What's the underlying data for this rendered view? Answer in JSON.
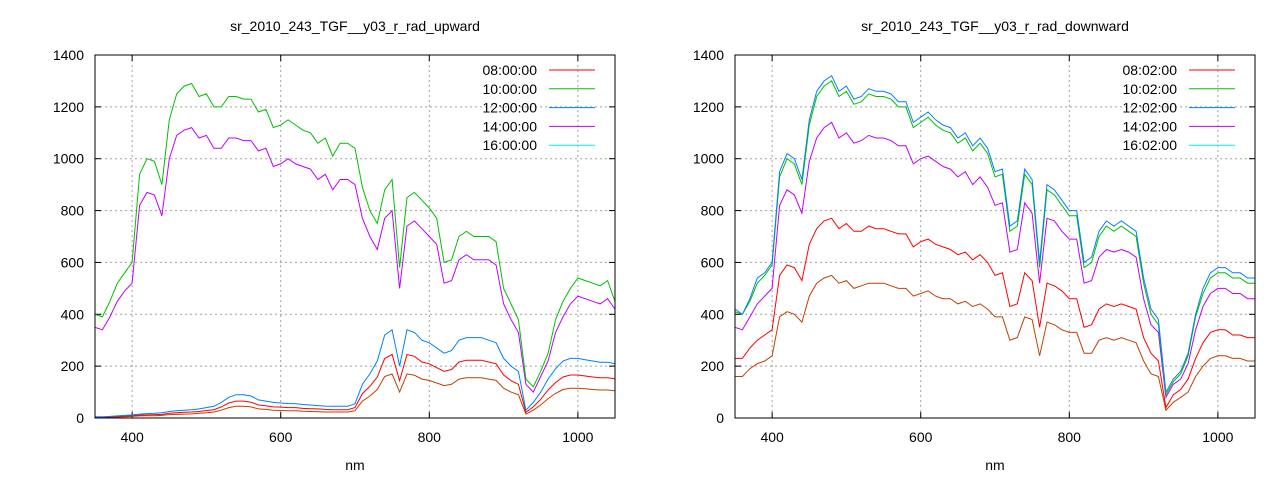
{
  "chart_data": [
    {
      "type": "line",
      "title": "sr_2010_243_TGF__y03_r_rad_upward",
      "xlabel": "nm",
      "ylabel": "",
      "xlim": [
        350,
        1050
      ],
      "ylim": [
        0,
        1400
      ],
      "xticks": [
        400,
        600,
        800,
        1000
      ],
      "yticks": [
        0,
        200,
        400,
        600,
        800,
        1000,
        1200,
        1400
      ],
      "grid": true,
      "legend_position": "top-right",
      "x": [
        350,
        360,
        370,
        380,
        390,
        400,
        410,
        420,
        430,
        440,
        450,
        460,
        470,
        480,
        490,
        500,
        510,
        520,
        530,
        540,
        550,
        560,
        570,
        580,
        590,
        600,
        610,
        620,
        630,
        640,
        650,
        660,
        670,
        680,
        690,
        700,
        710,
        720,
        730,
        740,
        750,
        760,
        770,
        780,
        790,
        800,
        810,
        820,
        830,
        840,
        850,
        860,
        870,
        880,
        890,
        900,
        910,
        920,
        930,
        940,
        950,
        960,
        970,
        980,
        990,
        1000,
        1010,
        1020,
        1030,
        1040,
        1050
      ],
      "series": [
        {
          "name": "08:00:00",
          "legend_color": "#ff0000",
          "line_color": "#ff0000",
          "values": [
            4,
            4,
            4,
            6,
            7,
            9,
            11,
            12,
            13,
            14,
            18,
            20,
            22,
            23,
            25,
            29,
            32,
            43,
            58,
            65,
            65,
            61,
            50,
            47,
            43,
            42,
            40,
            40,
            37,
            36,
            35,
            33,
            32,
            32,
            32,
            40,
            94,
            122,
            158,
            230,
            245,
            144,
            245,
            238,
            216,
            209,
            194,
            180,
            187,
            216,
            223,
            223,
            223,
            216,
            209,
            166,
            144,
            130,
            22,
            43,
            72,
            108,
            137,
            158,
            166,
            166,
            162,
            158,
            155,
            155,
            151
          ]
        },
        {
          "name": "10:00:00",
          "legend_color": "#00c000",
          "line_color": "#00c000",
          "values": [
            400,
            390,
            450,
            520,
            560,
            600,
            940,
            1000,
            990,
            900,
            1150,
            1250,
            1280,
            1290,
            1240,
            1250,
            1200,
            1200,
            1240,
            1240,
            1230,
            1230,
            1180,
            1190,
            1120,
            1130,
            1150,
            1130,
            1110,
            1100,
            1060,
            1080,
            1010,
            1060,
            1060,
            1040,
            890,
            800,
            750,
            880,
            920,
            580,
            850,
            870,
            840,
            810,
            770,
            600,
            610,
            700,
            720,
            700,
            700,
            700,
            680,
            500,
            440,
            380,
            150,
            120,
            180,
            250,
            380,
            450,
            500,
            540,
            530,
            520,
            510,
            530,
            450
          ]
        },
        {
          "name": "12:00:00",
          "legend_color": "#0080ff",
          "line_color": "#0080ff",
          "values": [
            5,
            5,
            6,
            8,
            10,
            12,
            15,
            17,
            18,
            20,
            25,
            28,
            30,
            32,
            35,
            40,
            45,
            60,
            80,
            90,
            90,
            85,
            70,
            65,
            60,
            58,
            56,
            55,
            52,
            50,
            48,
            46,
            45,
            45,
            45,
            55,
            130,
            170,
            220,
            320,
            340,
            200,
            340,
            330,
            300,
            290,
            270,
            250,
            260,
            300,
            310,
            310,
            310,
            300,
            290,
            230,
            200,
            180,
            30,
            60,
            100,
            150,
            190,
            220,
            230,
            230,
            225,
            220,
            215,
            215,
            210
          ]
        },
        {
          "name": "14:00:00",
          "legend_color": "#c000ff",
          "line_color": "#c000ff",
          "values": [
            350,
            340,
            390,
            450,
            490,
            520,
            820,
            870,
            860,
            780,
            1000,
            1090,
            1110,
            1120,
            1080,
            1090,
            1040,
            1040,
            1080,
            1080,
            1070,
            1070,
            1030,
            1040,
            970,
            980,
            1000,
            980,
            970,
            960,
            920,
            940,
            880,
            920,
            920,
            900,
            770,
            700,
            650,
            770,
            800,
            500,
            740,
            760,
            730,
            700,
            670,
            520,
            530,
            610,
            630,
            610,
            610,
            610,
            590,
            440,
            380,
            330,
            130,
            100,
            160,
            220,
            330,
            390,
            440,
            470,
            460,
            450,
            440,
            460,
            420
          ]
        },
        {
          "name": "16:00:00",
          "legend_color": "#00eeee",
          "line_color": "#c04000",
          "values": [
            3,
            3,
            3,
            4,
            5,
            6,
            8,
            9,
            9,
            10,
            13,
            14,
            15,
            16,
            18,
            20,
            23,
            30,
            40,
            45,
            45,
            43,
            35,
            33,
            30,
            29,
            28,
            28,
            26,
            25,
            24,
            23,
            23,
            23,
            23,
            28,
            65,
            85,
            110,
            160,
            170,
            100,
            170,
            165,
            150,
            145,
            135,
            125,
            130,
            150,
            155,
            155,
            155,
            150,
            145,
            115,
            100,
            90,
            15,
            30,
            50,
            75,
            95,
            110,
            115,
            115,
            113,
            110,
            108,
            108,
            105
          ]
        }
      ]
    },
    {
      "type": "line",
      "title": "sr_2010_243_TGF__y03_r_rad_downward",
      "xlabel": "nm",
      "ylabel": "",
      "xlim": [
        350,
        1050
      ],
      "ylim": [
        0,
        1400
      ],
      "xticks": [
        400,
        600,
        800,
        1000
      ],
      "yticks": [
        0,
        200,
        400,
        600,
        800,
        1000,
        1200,
        1400
      ],
      "grid": true,
      "legend_position": "top-right",
      "x": [
        350,
        360,
        370,
        380,
        390,
        400,
        410,
        420,
        430,
        440,
        450,
        460,
        470,
        480,
        490,
        500,
        510,
        520,
        530,
        540,
        550,
        560,
        570,
        580,
        590,
        600,
        610,
        620,
        630,
        640,
        650,
        660,
        670,
        680,
        690,
        700,
        710,
        720,
        730,
        740,
        750,
        760,
        770,
        780,
        790,
        800,
        810,
        820,
        830,
        840,
        850,
        860,
        870,
        880,
        890,
        900,
        910,
        920,
        930,
        940,
        950,
        960,
        970,
        980,
        990,
        1000,
        1010,
        1020,
        1030,
        1040,
        1050
      ],
      "series": [
        {
          "name": "08:02:00",
          "legend_color": "#ff0000",
          "line_color": "#ff0000",
          "values": [
            230,
            230,
            270,
            300,
            320,
            340,
            550,
            590,
            580,
            530,
            670,
            730,
            760,
            770,
            730,
            750,
            720,
            720,
            740,
            730,
            730,
            720,
            710,
            710,
            660,
            680,
            690,
            670,
            660,
            650,
            630,
            640,
            610,
            630,
            600,
            550,
            560,
            430,
            440,
            560,
            530,
            350,
            520,
            510,
            490,
            460,
            460,
            350,
            360,
            420,
            440,
            430,
            440,
            430,
            420,
            310,
            250,
            220,
            40,
            90,
            110,
            150,
            230,
            290,
            330,
            340,
            340,
            320,
            320,
            310,
            310
          ]
        },
        {
          "name": "10:02:00",
          "legend_color": "#00c000",
          "line_color": "#00c000",
          "values": [
            410,
            400,
            450,
            520,
            550,
            590,
            930,
            1000,
            980,
            900,
            1130,
            1240,
            1280,
            1300,
            1240,
            1260,
            1210,
            1220,
            1250,
            1240,
            1240,
            1230,
            1200,
            1200,
            1120,
            1140,
            1160,
            1130,
            1110,
            1100,
            1060,
            1080,
            1030,
            1060,
            1020,
            930,
            940,
            720,
            740,
            940,
            900,
            580,
            880,
            860,
            820,
            780,
            780,
            580,
            600,
            700,
            740,
            720,
            740,
            720,
            700,
            520,
            400,
            360,
            90,
            140,
            170,
            240,
            390,
            480,
            540,
            560,
            560,
            540,
            540,
            520,
            520
          ]
        },
        {
          "name": "12:02:00",
          "legend_color": "#0080ff",
          "line_color": "#0080ff",
          "values": [
            420,
            400,
            460,
            540,
            560,
            600,
            950,
            1020,
            1000,
            920,
            1150,
            1260,
            1300,
            1320,
            1260,
            1280,
            1230,
            1240,
            1270,
            1260,
            1260,
            1250,
            1220,
            1220,
            1140,
            1160,
            1180,
            1150,
            1130,
            1120,
            1080,
            1100,
            1050,
            1080,
            1040,
            950,
            960,
            740,
            760,
            960,
            920,
            600,
            900,
            880,
            840,
            800,
            800,
            600,
            620,
            720,
            760,
            740,
            760,
            740,
            720,
            540,
            420,
            380,
            100,
            150,
            180,
            250,
            400,
            500,
            560,
            580,
            580,
            560,
            560,
            540,
            540
          ]
        },
        {
          "name": "14:02:00",
          "legend_color": "#c000ff",
          "line_color": "#c000ff",
          "values": [
            350,
            340,
            390,
            440,
            470,
            500,
            820,
            880,
            860,
            790,
            990,
            1080,
            1120,
            1140,
            1080,
            1100,
            1060,
            1070,
            1090,
            1080,
            1080,
            1070,
            1050,
            1050,
            980,
            1000,
            1010,
            990,
            970,
            960,
            930,
            950,
            900,
            930,
            890,
            820,
            830,
            640,
            650,
            830,
            790,
            520,
            770,
            760,
            720,
            690,
            690,
            520,
            530,
            620,
            650,
            640,
            650,
            640,
            620,
            460,
            360,
            330,
            80,
            130,
            150,
            210,
            340,
            430,
            480,
            500,
            500,
            480,
            480,
            460,
            460
          ]
        },
        {
          "name": "16:02:00",
          "legend_color": "#00eeee",
          "line_color": "#c04000",
          "values": [
            160,
            160,
            190,
            210,
            220,
            240,
            390,
            410,
            400,
            370,
            470,
            520,
            540,
            550,
            520,
            530,
            500,
            510,
            520,
            520,
            520,
            510,
            500,
            500,
            470,
            480,
            490,
            470,
            460,
            460,
            440,
            450,
            430,
            440,
            420,
            390,
            390,
            300,
            310,
            390,
            380,
            240,
            370,
            360,
            340,
            330,
            330,
            250,
            250,
            300,
            310,
            300,
            310,
            300,
            290,
            220,
            170,
            160,
            30,
            60,
            80,
            100,
            160,
            200,
            230,
            240,
            240,
            230,
            230,
            220,
            220
          ]
        }
      ]
    }
  ]
}
